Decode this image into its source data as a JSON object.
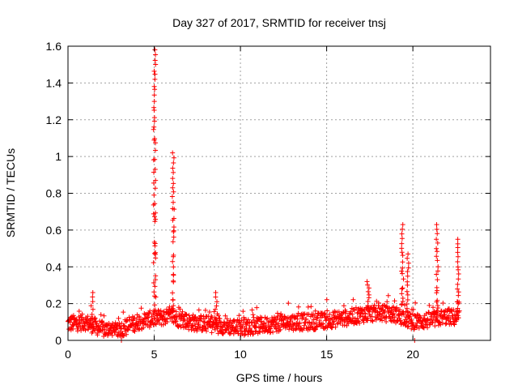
{
  "chart_data": {
    "type": "scatter",
    "title": "Day 327 of 2017, SRMTID for receiver tnsj",
    "xlabel": "GPS time / hours",
    "ylabel": "SRMTID / TECUs",
    "xlim": [
      0,
      24.5
    ],
    "ylim": [
      0,
      1.6
    ],
    "x_ticks": [
      0,
      5,
      10,
      15,
      20
    ],
    "x_tick_labels": [
      "0",
      "5",
      "10",
      "15",
      "20"
    ],
    "y_ticks": [
      0,
      0.2,
      0.4,
      0.6,
      0.8,
      1,
      1.2,
      1.4,
      1.6
    ],
    "y_tick_labels": [
      "0",
      "0.2",
      "0.4",
      "0.6",
      "0.8",
      "1",
      "1.2",
      "1.4",
      "1.6"
    ],
    "grid": true,
    "marker": "+",
    "color": "#ff0000",
    "series": [
      {
        "name": "SRMTID",
        "baseline": [
          [
            0,
            0.09
          ],
          [
            1,
            0.1
          ],
          [
            2,
            0.06
          ],
          [
            3,
            0.05
          ],
          [
            4,
            0.1
          ],
          [
            5,
            0.12
          ],
          [
            6,
            0.13
          ],
          [
            7,
            0.1
          ],
          [
            8,
            0.09
          ],
          [
            9,
            0.08
          ],
          [
            10,
            0.07
          ],
          [
            11,
            0.08
          ],
          [
            12,
            0.09
          ],
          [
            13,
            0.1
          ],
          [
            14,
            0.1
          ],
          [
            15,
            0.11
          ],
          [
            16,
            0.12
          ],
          [
            17,
            0.14
          ],
          [
            18,
            0.15
          ],
          [
            19,
            0.14
          ],
          [
            20,
            0.1
          ],
          [
            21,
            0.11
          ],
          [
            22,
            0.13
          ],
          [
            22.7,
            0.12
          ]
        ],
        "peaks": [
          {
            "x": 1.4,
            "y": 0.26
          },
          {
            "x": 5.02,
            "y": 1.58
          },
          {
            "x": 6.1,
            "y": 1.02
          },
          {
            "x": 8.6,
            "y": 0.26
          },
          {
            "x": 17.4,
            "y": 0.32
          },
          {
            "x": 19.4,
            "y": 0.63
          },
          {
            "x": 19.7,
            "y": 0.47
          },
          {
            "x": 21.4,
            "y": 0.63
          },
          {
            "x": 22.6,
            "y": 0.55
          }
        ]
      }
    ]
  }
}
